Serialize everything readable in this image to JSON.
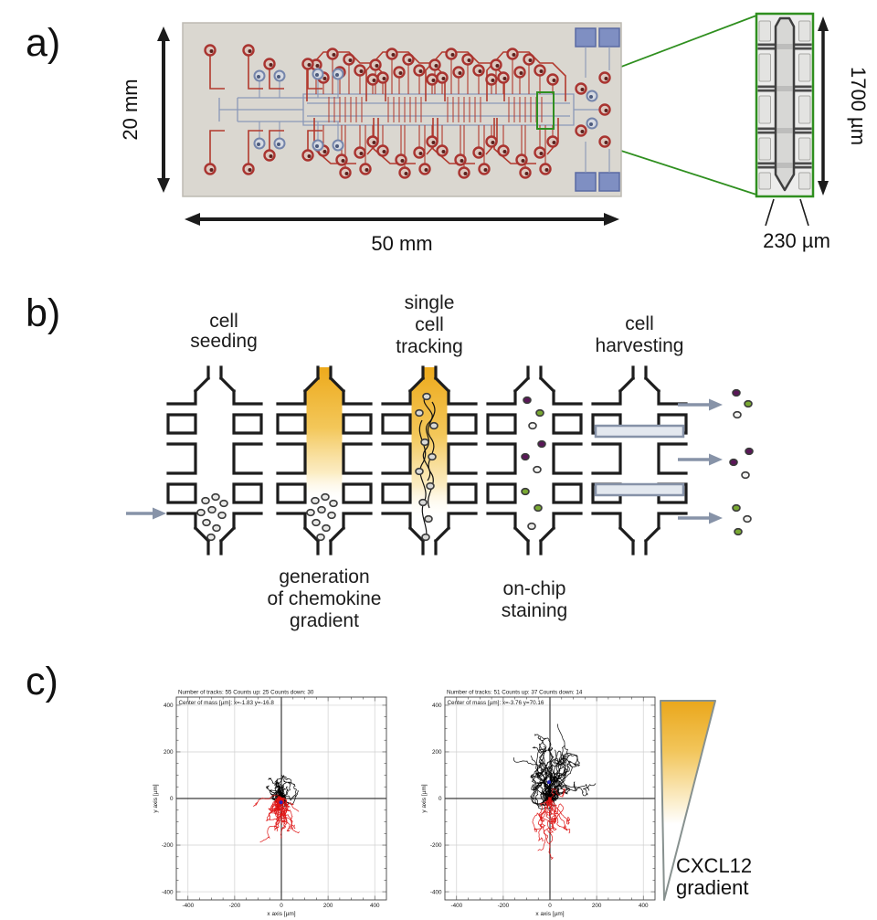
{
  "panel_a": {
    "label": "a)",
    "height_label": "20 mm",
    "width_label": "50 mm",
    "inset_height_label": "1700 µm",
    "inset_width_label": "230 µm"
  },
  "panel_b": {
    "label": "b)",
    "steps": [
      {
        "lines": [
          "cell",
          "seeding"
        ],
        "position": "above"
      },
      {
        "lines": [
          "generation",
          "of chemokine",
          "gradient"
        ],
        "position": "below"
      },
      {
        "lines": [
          "single",
          "cell",
          "tracking"
        ],
        "position": "above"
      },
      {
        "lines": [
          "on-chip",
          "staining"
        ],
        "position": "below"
      },
      {
        "lines": [
          "cell",
          "harvesting"
        ],
        "position": "above"
      }
    ]
  },
  "panel_c": {
    "label": "c)",
    "gradient_label_lines": [
      "CXCL12",
      "gradient"
    ]
  },
  "chart_data": [
    {
      "type": "line",
      "subtype": "cell-migration-trajectories",
      "header": "Number of tracks: 55  Counts up: 25  Counts down: 30",
      "annotation": "Center of mass [µm]: x=-1.83 y=-16.8",
      "number_of_tracks": 55,
      "counts_up": 25,
      "counts_down": 30,
      "center_of_mass": {
        "x": -1.83,
        "y": -16.8
      },
      "xlabel": "x axis [µm]",
      "ylabel": "y axis [µm]",
      "xlim": [
        -450,
        450
      ],
      "ylim": [
        -435,
        435
      ],
      "xticks": [
        -400,
        -200,
        0,
        200,
        400
      ],
      "yticks": [
        -400,
        -200,
        0,
        200,
        400
      ],
      "grid": true,
      "center_marker_color": "#2323bb",
      "series": [
        {
          "name": "tracks counted up",
          "color": "#000000",
          "count": 25,
          "sim": {
            "steps": 46,
            "jitter": 6.5,
            "drift": 0.85,
            "x_range": [
              -110,
              130
            ],
            "y_range": [
              -60,
              140
            ]
          }
        },
        {
          "name": "tracks counted down",
          "color": "#dd1212",
          "count": 30,
          "sim": {
            "steps": 46,
            "jitter": 6.5,
            "drift": -1.7,
            "x_range": [
              -150,
              100
            ],
            "y_range": [
              -250,
              40
            ]
          }
        }
      ]
    },
    {
      "type": "line",
      "subtype": "cell-migration-trajectories",
      "header": "Number of tracks: 51  Counts up: 37  Counts down: 14",
      "annotation": "Center of mass [µm]: x=-3.76 y=70.16",
      "number_of_tracks": 51,
      "counts_up": 37,
      "counts_down": 14,
      "center_of_mass": {
        "x": -3.76,
        "y": 70.16
      },
      "xlabel": "x axis [µm]",
      "ylabel": "y axis [µm]",
      "xlim": [
        -450,
        450
      ],
      "ylim": [
        -435,
        435
      ],
      "xticks": [
        -400,
        -200,
        0,
        200,
        400
      ],
      "yticks": [
        -400,
        -200,
        0,
        200,
        400
      ],
      "grid": true,
      "center_marker_color": "#2323bb",
      "series": [
        {
          "name": "tracks counted up",
          "color": "#000000",
          "count": 37,
          "sim": {
            "steps": 50,
            "jitter": 11,
            "drift": 2.4,
            "x_range": [
              -190,
              195
            ],
            "y_range": [
              -85,
              415
            ]
          }
        },
        {
          "name": "tracks counted down",
          "color": "#dd1212",
          "count": 14,
          "sim": {
            "steps": 50,
            "jitter": 8,
            "drift": -2.6,
            "x_range": [
              -125,
              85
            ],
            "y_range": [
              -305,
              40
            ]
          }
        }
      ]
    }
  ]
}
